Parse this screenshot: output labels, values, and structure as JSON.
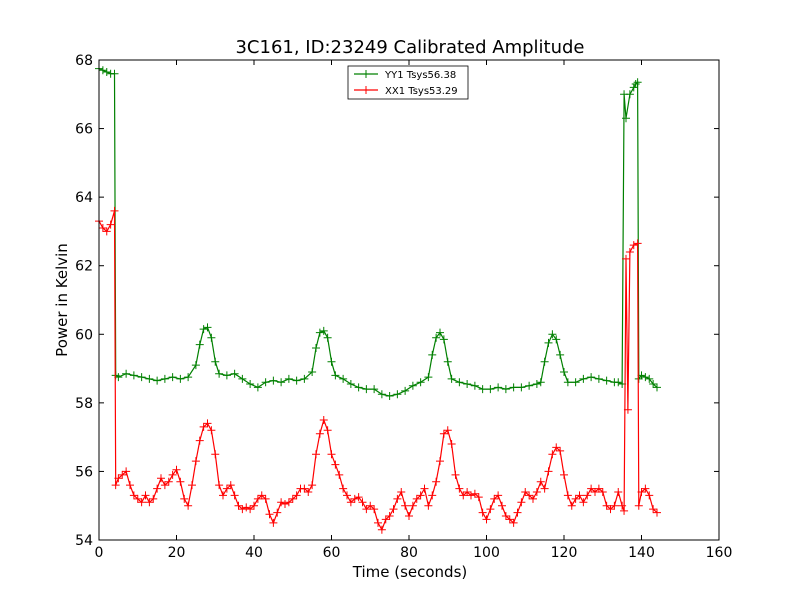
{
  "chart_data": {
    "type": "line",
    "title": "3C161, ID:23249 Calibrated Amplitude",
    "xlabel": "Time (seconds)",
    "ylabel": "Power in Kelvin",
    "xlim": [
      0,
      160
    ],
    "ylim": [
      54,
      68
    ],
    "xticks": [
      "0",
      "20",
      "40",
      "60",
      "80",
      "100",
      "120",
      "140",
      "160"
    ],
    "yticks": [
      "54",
      "56",
      "58",
      "60",
      "62",
      "64",
      "66",
      "68"
    ],
    "grid": false,
    "legend_position": "top-center",
    "marker": "+",
    "series": [
      {
        "name": "YY1 Tsys56.38",
        "color": "#008000",
        "points": [
          [
            0,
            67.75
          ],
          [
            1,
            67.7
          ],
          [
            2,
            67.65
          ],
          [
            3,
            67.6
          ],
          [
            4,
            67.6
          ],
          [
            4.3,
            58.8
          ],
          [
            5,
            58.75
          ],
          [
            7,
            58.85
          ],
          [
            9,
            58.8
          ],
          [
            11,
            58.75
          ],
          [
            13,
            58.7
          ],
          [
            15,
            58.65
          ],
          [
            17,
            58.7
          ],
          [
            19,
            58.75
          ],
          [
            21,
            58.7
          ],
          [
            23,
            58.75
          ],
          [
            25,
            59.1
          ],
          [
            26,
            59.7
          ],
          [
            27,
            60.15
          ],
          [
            28,
            60.2
          ],
          [
            29,
            59.9
          ],
          [
            30,
            59.2
          ],
          [
            31,
            58.85
          ],
          [
            33,
            58.8
          ],
          [
            35,
            58.85
          ],
          [
            37,
            58.7
          ],
          [
            39,
            58.55
          ],
          [
            41,
            58.45
          ],
          [
            43,
            58.6
          ],
          [
            45,
            58.65
          ],
          [
            47,
            58.6
          ],
          [
            49,
            58.7
          ],
          [
            51,
            58.65
          ],
          [
            53,
            58.7
          ],
          [
            55,
            58.9
          ],
          [
            56,
            59.6
          ],
          [
            57,
            60.05
          ],
          [
            58,
            60.1
          ],
          [
            59,
            59.9
          ],
          [
            60,
            59.2
          ],
          [
            61,
            58.8
          ],
          [
            63,
            58.7
          ],
          [
            65,
            58.55
          ],
          [
            67,
            58.45
          ],
          [
            69,
            58.4
          ],
          [
            71,
            58.4
          ],
          [
            73,
            58.25
          ],
          [
            75,
            58.2
          ],
          [
            77,
            58.25
          ],
          [
            79,
            58.35
          ],
          [
            81,
            58.5
          ],
          [
            83,
            58.6
          ],
          [
            85,
            58.75
          ],
          [
            86,
            59.4
          ],
          [
            87,
            59.9
          ],
          [
            88,
            60.05
          ],
          [
            89,
            59.85
          ],
          [
            90,
            59.2
          ],
          [
            91,
            58.7
          ],
          [
            93,
            58.6
          ],
          [
            95,
            58.55
          ],
          [
            97,
            58.5
          ],
          [
            99,
            58.4
          ],
          [
            101,
            58.4
          ],
          [
            103,
            58.45
          ],
          [
            105,
            58.4
          ],
          [
            107,
            58.45
          ],
          [
            109,
            58.45
          ],
          [
            111,
            58.5
          ],
          [
            113,
            58.55
          ],
          [
            114,
            58.6
          ],
          [
            115,
            59.2
          ],
          [
            116,
            59.75
          ],
          [
            117,
            60.0
          ],
          [
            118,
            59.85
          ],
          [
            119,
            59.4
          ],
          [
            120,
            58.9
          ],
          [
            121,
            58.6
          ],
          [
            123,
            58.6
          ],
          [
            125,
            58.7
          ],
          [
            127,
            58.75
          ],
          [
            129,
            58.7
          ],
          [
            131,
            58.65
          ],
          [
            133,
            58.6
          ],
          [
            134,
            58.6
          ],
          [
            135,
            58.55
          ],
          [
            135.5,
            67.0
          ],
          [
            136,
            66.3
          ],
          [
            137,
            67.0
          ],
          [
            138,
            67.2
          ],
          [
            138.5,
            67.3
          ],
          [
            139,
            67.35
          ],
          [
            139.3,
            58.7
          ],
          [
            140,
            58.8
          ],
          [
            141,
            58.75
          ],
          [
            142,
            58.7
          ],
          [
            143,
            58.55
          ],
          [
            144,
            58.45
          ]
        ]
      },
      {
        "name": "XX1 Tsys53.29",
        "color": "#ff0000",
        "points": [
          [
            0,
            63.3
          ],
          [
            1,
            63.1
          ],
          [
            2,
            63.0
          ],
          [
            3,
            63.2
          ],
          [
            4,
            63.6
          ],
          [
            4.3,
            55.6
          ],
          [
            5,
            55.8
          ],
          [
            6,
            55.9
          ],
          [
            7,
            56.0
          ],
          [
            8,
            55.6
          ],
          [
            9,
            55.3
          ],
          [
            10,
            55.2
          ],
          [
            11,
            55.1
          ],
          [
            12,
            55.3
          ],
          [
            13,
            55.1
          ],
          [
            14,
            55.2
          ],
          [
            15,
            55.5
          ],
          [
            16,
            55.8
          ],
          [
            17,
            55.6
          ],
          [
            18,
            55.7
          ],
          [
            19,
            55.9
          ],
          [
            20,
            56.05
          ],
          [
            21,
            55.7
          ],
          [
            22,
            55.2
          ],
          [
            23,
            55.0
          ],
          [
            24,
            55.6
          ],
          [
            25,
            56.3
          ],
          [
            26,
            56.9
          ],
          [
            27,
            57.3
          ],
          [
            28,
            57.4
          ],
          [
            29,
            57.2
          ],
          [
            30,
            56.5
          ],
          [
            31,
            55.6
          ],
          [
            32,
            55.3
          ],
          [
            33,
            55.5
          ],
          [
            34,
            55.6
          ],
          [
            35,
            55.3
          ],
          [
            36,
            55.0
          ],
          [
            37,
            54.9
          ],
          [
            38,
            54.95
          ],
          [
            39,
            54.9
          ],
          [
            40,
            55.0
          ],
          [
            41,
            55.2
          ],
          [
            42,
            55.3
          ],
          [
            43,
            55.2
          ],
          [
            44,
            54.75
          ],
          [
            45,
            54.5
          ],
          [
            46,
            54.8
          ],
          [
            47,
            55.1
          ],
          [
            48,
            55.05
          ],
          [
            49,
            55.1
          ],
          [
            50,
            55.2
          ],
          [
            51,
            55.3
          ],
          [
            52,
            55.5
          ],
          [
            53,
            55.5
          ],
          [
            54,
            55.4
          ],
          [
            55,
            55.6
          ],
          [
            56,
            56.5
          ],
          [
            57,
            57.1
          ],
          [
            58,
            57.5
          ],
          [
            59,
            57.2
          ],
          [
            60,
            56.5
          ],
          [
            61,
            56.2
          ],
          [
            62,
            55.9
          ],
          [
            63,
            55.5
          ],
          [
            64,
            55.3
          ],
          [
            65,
            55.1
          ],
          [
            66,
            55.2
          ],
          [
            67,
            55.25
          ],
          [
            68,
            55.1
          ],
          [
            69,
            54.9
          ],
          [
            70,
            55.0
          ],
          [
            71,
            54.9
          ],
          [
            72,
            54.5
          ],
          [
            73,
            54.3
          ],
          [
            74,
            54.6
          ],
          [
            75,
            54.7
          ],
          [
            76,
            54.9
          ],
          [
            77,
            55.2
          ],
          [
            78,
            55.4
          ],
          [
            79,
            55.0
          ],
          [
            80,
            54.7
          ],
          [
            81,
            55.0
          ],
          [
            82,
            55.2
          ],
          [
            83,
            55.3
          ],
          [
            84,
            55.5
          ],
          [
            85,
            55.0
          ],
          [
            86,
            55.3
          ],
          [
            87,
            55.7
          ],
          [
            88,
            56.3
          ],
          [
            89,
            57.1
          ],
          [
            90,
            57.2
          ],
          [
            91,
            56.8
          ],
          [
            92,
            55.9
          ],
          [
            93,
            55.5
          ],
          [
            94,
            55.3
          ],
          [
            95,
            55.4
          ],
          [
            96,
            55.3
          ],
          [
            97,
            55.35
          ],
          [
            98,
            55.25
          ],
          [
            99,
            54.8
          ],
          [
            100,
            54.6
          ],
          [
            101,
            54.9
          ],
          [
            102,
            55.2
          ],
          [
            103,
            55.3
          ],
          [
            104,
            55.0
          ],
          [
            105,
            54.7
          ],
          [
            106,
            54.6
          ],
          [
            107,
            54.5
          ],
          [
            108,
            54.8
          ],
          [
            109,
            55.1
          ],
          [
            110,
            55.4
          ],
          [
            111,
            55.3
          ],
          [
            112,
            55.2
          ],
          [
            113,
            55.4
          ],
          [
            114,
            55.7
          ],
          [
            115,
            55.5
          ],
          [
            116,
            56.0
          ],
          [
            117,
            56.5
          ],
          [
            118,
            56.7
          ],
          [
            119,
            56.6
          ],
          [
            120,
            55.9
          ],
          [
            121,
            55.3
          ],
          [
            122,
            55.0
          ],
          [
            123,
            55.2
          ],
          [
            124,
            55.3
          ],
          [
            125,
            55.1
          ],
          [
            126,
            55.3
          ],
          [
            127,
            55.5
          ],
          [
            128,
            55.4
          ],
          [
            129,
            55.5
          ],
          [
            130,
            55.4
          ],
          [
            131,
            55.0
          ],
          [
            132,
            54.9
          ],
          [
            133,
            55.0
          ],
          [
            134,
            55.4
          ],
          [
            135,
            55.0
          ],
          [
            135.5,
            54.85
          ],
          [
            136,
            62.2
          ],
          [
            136.5,
            57.8
          ],
          [
            137,
            62.4
          ],
          [
            138,
            62.6
          ],
          [
            139,
            62.65
          ],
          [
            139.3,
            55.0
          ],
          [
            140,
            55.4
          ],
          [
            141,
            55.5
          ],
          [
            142,
            55.3
          ],
          [
            143,
            54.9
          ],
          [
            144,
            54.8
          ]
        ]
      }
    ]
  }
}
